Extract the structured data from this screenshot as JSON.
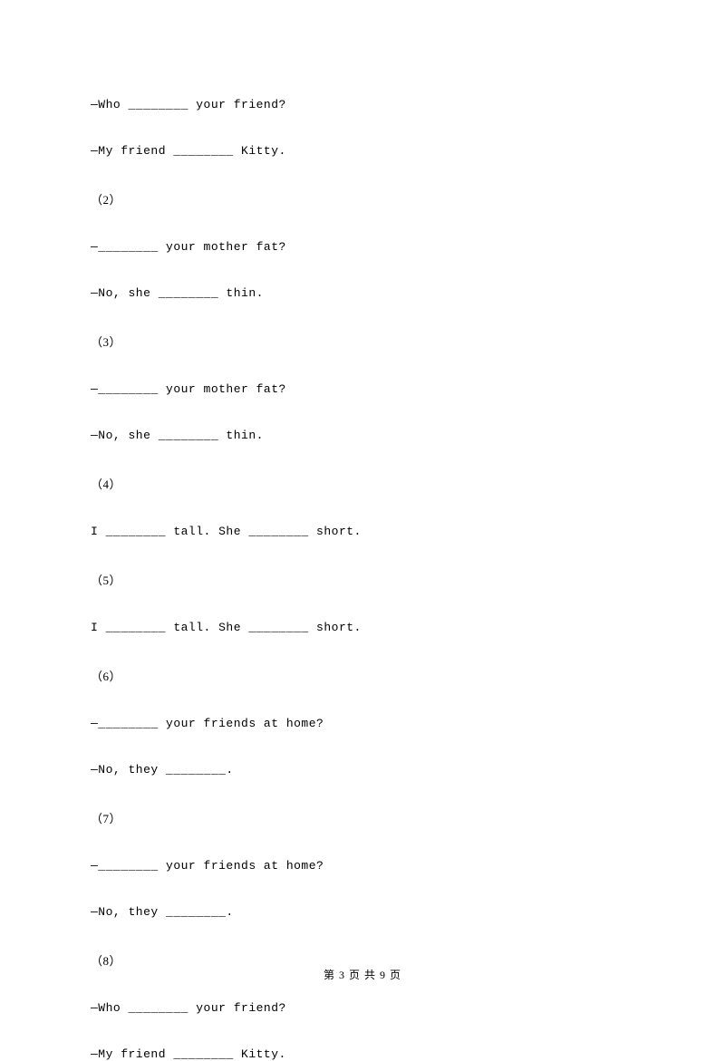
{
  "questions": [
    {
      "line1": "—Who ________ your friend?",
      "line2": "—My friend ________ Kitty."
    },
    {
      "marker": "（2）",
      "line1": "—________ your mother fat?",
      "line2": "—No, she ________ thin."
    },
    {
      "marker": "（3）",
      "line1": "—________ your mother fat?",
      "line2": "—No, she ________ thin."
    },
    {
      "marker": "（4）",
      "line1": "I ________ tall. She ________ short."
    },
    {
      "marker": "（5）",
      "line1": "I ________ tall. She ________ short."
    },
    {
      "marker": "（6）",
      "line1": "—________ your friends at home?",
      "line2": "—No, they ________."
    },
    {
      "marker": "（7）",
      "line1": "—________ your friends at home?",
      "line2": "—No, they ________."
    },
    {
      "marker": "（8）",
      "line1": "—Who ________ your friend?",
      "line2": "—My friend ________ Kitty."
    }
  ],
  "footer": "第 3 页 共 9 页"
}
